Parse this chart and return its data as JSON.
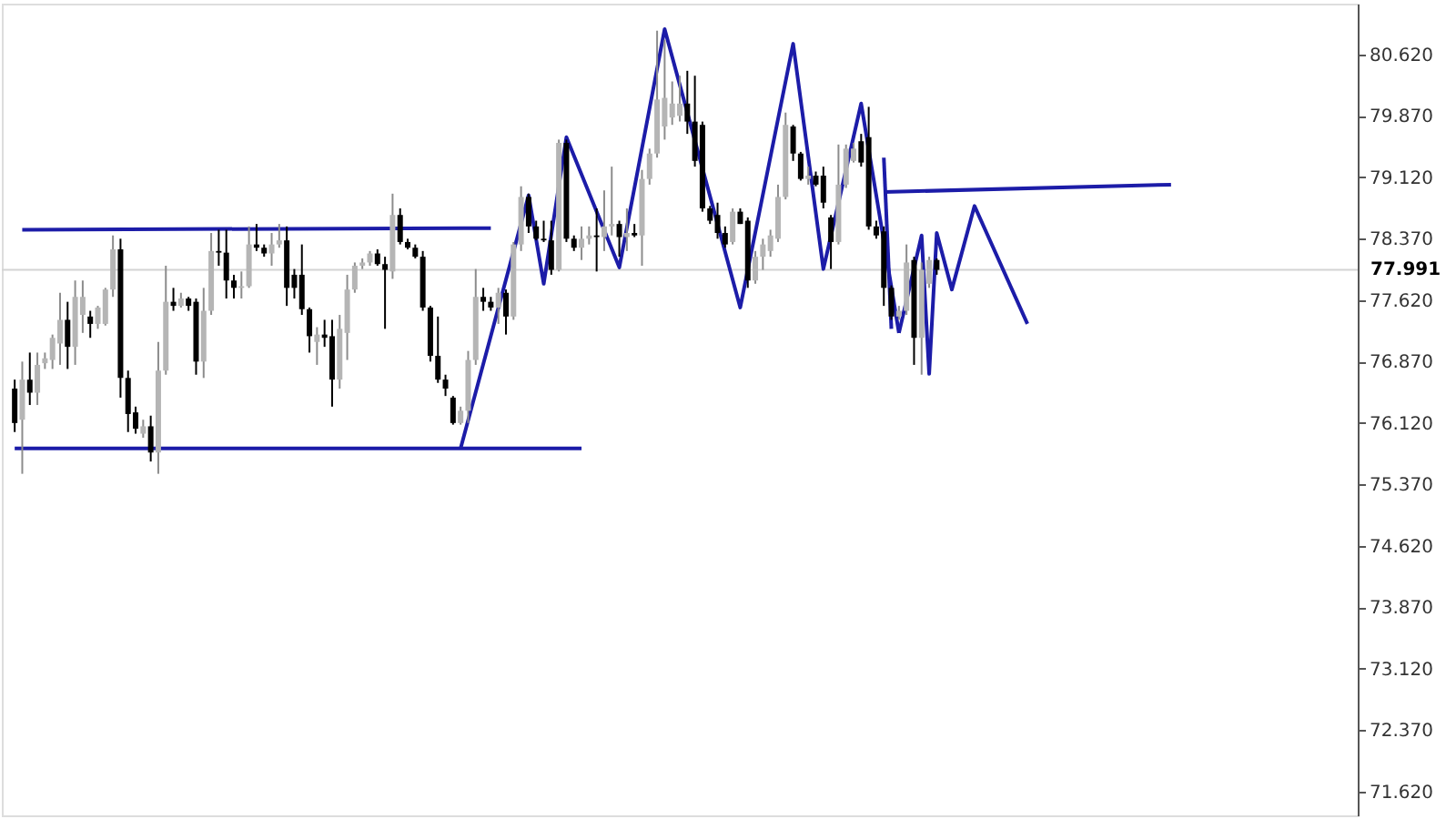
{
  "chart_data": {
    "type": "candlestick",
    "categories": [
      null,
      null,
      null,
      null,
      null,
      null,
      null,
      null,
      null,
      null,
      null,
      null,
      null,
      null,
      null,
      null,
      null,
      null,
      null,
      null,
      null,
      null,
      null,
      null,
      null,
      null,
      null,
      null,
      null,
      null,
      null,
      null,
      null,
      null,
      null,
      null,
      null,
      null,
      null,
      null,
      null,
      null,
      null,
      null,
      null,
      null,
      null,
      null,
      null,
      null,
      null,
      null,
      null,
      null,
      null,
      null,
      null,
      null,
      null,
      null,
      null,
      null,
      null,
      null,
      null,
      null,
      null,
      null,
      null,
      null,
      null,
      null,
      null,
      null,
      null,
      null,
      null,
      null,
      null,
      null,
      null,
      null,
      null,
      null,
      null,
      null,
      null,
      null,
      null,
      null,
      null,
      null,
      null,
      null,
      null,
      null,
      null,
      null,
      null,
      null,
      null,
      null,
      null,
      null,
      null,
      null,
      null,
      null,
      null,
      null,
      null,
      null,
      null,
      null,
      null,
      null,
      null,
      null,
      null,
      null,
      null,
      null,
      null,
      null,
      null,
      null,
      null,
      null,
      null,
      null,
      null,
      null,
      null,
      null,
      null,
      null,
      null,
      null,
      null,
      null,
      null,
      null,
      null,
      null,
      null,
      null,
      null,
      null,
      null,
      null,
      null,
      null,
      null,
      null,
      null,
      null,
      null,
      null,
      null,
      null,
      null,
      null,
      null,
      null,
      null,
      null,
      null,
      null,
      null,
      null,
      null,
      null,
      null,
      null,
      null,
      null,
      null
    ],
    "ohlc": [
      [
        76.54,
        76.65,
        76.01,
        76.12
      ],
      [
        76.16,
        76.87,
        75.5,
        76.65
      ],
      [
        76.65,
        76.98,
        76.34,
        76.49
      ],
      [
        76.49,
        76.98,
        76.34,
        76.83
      ],
      [
        76.85,
        76.98,
        76.78,
        76.91
      ],
      [
        76.89,
        77.2,
        76.78,
        77.16
      ],
      [
        77.09,
        77.71,
        76.83,
        77.38
      ],
      [
        77.38,
        77.6,
        76.78,
        77.05
      ],
      [
        77.05,
        77.86,
        76.83,
        77.66
      ],
      [
        77.44,
        77.86,
        77.22,
        77.66
      ],
      [
        77.42,
        77.49,
        77.16,
        77.33
      ],
      [
        77.33,
        77.55,
        77.27,
        77.53
      ],
      [
        77.33,
        77.77,
        77.31,
        77.75
      ],
      [
        77.75,
        78.41,
        77.66,
        78.24
      ],
      [
        78.24,
        78.37,
        76.43,
        76.67
      ],
      [
        76.67,
        76.76,
        76.01,
        76.23
      ],
      [
        76.25,
        76.32,
        75.99,
        76.05
      ],
      [
        75.99,
        76.16,
        75.94,
        76.08
      ],
      [
        76.08,
        76.21,
        75.65,
        75.76
      ],
      [
        75.76,
        77.11,
        75.5,
        76.76
      ],
      [
        76.76,
        78.04,
        76.71,
        77.6
      ],
      [
        77.6,
        77.77,
        77.49,
        77.55
      ],
      [
        77.55,
        77.71,
        77.53,
        77.64
      ],
      [
        77.64,
        77.66,
        77.49,
        77.55
      ],
      [
        77.6,
        77.64,
        76.71,
        76.87
      ],
      [
        76.87,
        77.77,
        76.67,
        77.49
      ],
      [
        77.49,
        78.44,
        77.44,
        78.22
      ],
      [
        78.22,
        78.48,
        78.04,
        78.2
      ],
      [
        78.2,
        78.48,
        77.64,
        77.86
      ],
      [
        77.86,
        77.93,
        77.64,
        77.77
      ],
      [
        77.77,
        77.97,
        77.64,
        77.79
      ],
      [
        77.79,
        78.52,
        77.77,
        78.3
      ],
      [
        78.3,
        78.55,
        78.22,
        78.26
      ],
      [
        78.26,
        78.3,
        78.15,
        78.19
      ],
      [
        78.19,
        78.44,
        78.04,
        78.3
      ],
      [
        78.3,
        78.55,
        78.26,
        78.35
      ],
      [
        78.35,
        78.52,
        77.55,
        77.77
      ],
      [
        77.93,
        78.0,
        77.64,
        77.77
      ],
      [
        77.93,
        78.3,
        77.44,
        77.51
      ],
      [
        77.51,
        77.53,
        76.98,
        77.18
      ],
      [
        77.11,
        77.29,
        76.83,
        77.2
      ],
      [
        77.2,
        77.38,
        77.05,
        77.16
      ],
      [
        77.18,
        77.38,
        76.32,
        76.65
      ],
      [
        76.65,
        77.44,
        76.54,
        77.27
      ],
      [
        77.22,
        77.93,
        76.89,
        77.75
      ],
      [
        77.75,
        78.08,
        77.71,
        78.04
      ],
      [
        78.04,
        78.13,
        78.0,
        78.08
      ],
      [
        78.08,
        78.22,
        78.04,
        78.19
      ],
      [
        78.19,
        78.24,
        78.04,
        78.06
      ],
      [
        78.06,
        78.15,
        77.27,
        77.99
      ],
      [
        77.97,
        78.92,
        77.88,
        78.66
      ],
      [
        78.66,
        78.74,
        78.3,
        78.33
      ],
      [
        78.33,
        78.37,
        78.24,
        78.26
      ],
      [
        78.26,
        78.3,
        78.13,
        78.15
      ],
      [
        78.15,
        78.22,
        77.49,
        77.53
      ],
      [
        77.53,
        77.55,
        76.87,
        76.94
      ],
      [
        76.94,
        77.42,
        76.61,
        76.65
      ],
      [
        76.65,
        76.71,
        76.45,
        76.54
      ],
      [
        76.43,
        76.45,
        76.1,
        76.12
      ],
      [
        76.12,
        76.32,
        76.1,
        76.27
      ],
      [
        76.27,
        77.0,
        76.12,
        76.89
      ],
      [
        76.89,
        78.0,
        76.83,
        77.66
      ],
      [
        77.66,
        77.77,
        77.49,
        77.6
      ],
      [
        77.6,
        77.66,
        77.49,
        77.53
      ],
      [
        77.53,
        77.77,
        77.33,
        77.71
      ],
      [
        77.71,
        77.75,
        77.2,
        77.42
      ],
      [
        77.42,
        78.33,
        77.38,
        78.3
      ],
      [
        78.3,
        79.01,
        78.22,
        78.88
      ],
      [
        78.88,
        78.92,
        78.44,
        78.52
      ],
      [
        78.52,
        78.59,
        78.35,
        78.37
      ],
      [
        78.37,
        78.59,
        78.33,
        78.35
      ],
      [
        78.35,
        78.59,
        77.93,
        77.99
      ],
      [
        77.99,
        79.58,
        77.97,
        79.54
      ],
      [
        79.54,
        79.58,
        78.33,
        78.37
      ],
      [
        78.37,
        78.41,
        78.22,
        78.26
      ],
      [
        78.26,
        78.52,
        78.11,
        78.37
      ],
      [
        78.37,
        78.52,
        78.3,
        78.41
      ],
      [
        78.41,
        78.74,
        77.97,
        78.39
      ],
      [
        78.39,
        78.96,
        78.22,
        78.52
      ],
      [
        78.52,
        79.25,
        78.41,
        78.55
      ],
      [
        78.55,
        78.59,
        78.15,
        78.39
      ],
      [
        78.39,
        78.74,
        78.22,
        78.44
      ],
      [
        78.44,
        78.55,
        78.39,
        78.41
      ],
      [
        78.41,
        79.21,
        78.04,
        79.1
      ],
      [
        79.1,
        79.47,
        79.03,
        79.41
      ],
      [
        79.41,
        80.91,
        79.36,
        80.07
      ],
      [
        79.74,
        80.8,
        79.58,
        80.09
      ],
      [
        79.85,
        80.29,
        79.76,
        80.02
      ],
      [
        79.87,
        80.36,
        79.8,
        80.02
      ],
      [
        80.02,
        80.42,
        79.65,
        79.8
      ],
      [
        79.8,
        80.36,
        79.25,
        79.32
      ],
      [
        79.76,
        79.8,
        78.7,
        78.74
      ],
      [
        78.74,
        78.77,
        78.55,
        78.59
      ],
      [
        78.66,
        78.81,
        78.37,
        78.44
      ],
      [
        78.44,
        78.52,
        78.26,
        78.3
      ],
      [
        78.33,
        78.74,
        78.3,
        78.7
      ],
      [
        78.7,
        78.74,
        78.55,
        78.55
      ],
      [
        78.59,
        78.63,
        77.77,
        77.86
      ],
      [
        77.86,
        78.22,
        77.82,
        78.15
      ],
      [
        78.15,
        78.37,
        77.99,
        78.3
      ],
      [
        78.22,
        78.48,
        78.15,
        78.41
      ],
      [
        78.37,
        79.03,
        78.33,
        78.88
      ],
      [
        78.88,
        79.91,
        78.85,
        79.76
      ],
      [
        79.74,
        79.76,
        79.32,
        79.41
      ],
      [
        79.41,
        79.43,
        79.08,
        79.1
      ],
      [
        79.1,
        79.25,
        79.03,
        79.14
      ],
      [
        79.14,
        79.19,
        79.01,
        79.03
      ],
      [
        79.14,
        79.25,
        78.74,
        78.81
      ],
      [
        78.63,
        78.66,
        78.0,
        78.33
      ],
      [
        78.33,
        79.52,
        78.3,
        79.03
      ],
      [
        79.03,
        79.52,
        78.99,
        79.47
      ],
      [
        79.32,
        79.54,
        79.3,
        79.47
      ],
      [
        79.56,
        79.65,
        79.25,
        79.3
      ],
      [
        79.61,
        79.98,
        78.48,
        78.52
      ],
      [
        78.52,
        78.59,
        78.37,
        78.41
      ],
      [
        78.46,
        78.52,
        77.55,
        77.77
      ],
      [
        77.77,
        77.8,
        77.38,
        77.42
      ],
      [
        77.42,
        77.55,
        77.38,
        77.49
      ],
      [
        77.49,
        78.3,
        77.44,
        78.08
      ],
      [
        78.11,
        78.15,
        76.83,
        77.16
      ],
      [
        77.16,
        78.08,
        76.71,
        77.99
      ],
      [
        77.82,
        78.15,
        77.77,
        78.11
      ],
      [
        78.11,
        78.13,
        77.93,
        77.99
      ],
      null,
      null,
      null,
      null,
      null,
      null,
      null,
      null,
      null,
      null,
      null,
      null,
      null,
      null,
      null,
      null,
      null,
      null,
      null,
      null,
      null,
      null,
      null,
      null,
      null,
      null,
      null,
      null,
      null,
      null,
      null,
      null,
      null,
      null,
      null,
      null,
      null,
      null,
      null,
      null,
      null,
      null,
      null,
      null,
      null,
      null,
      null,
      null,
      null,
      null,
      null,
      null,
      null,
      null
    ],
    "series": [
      {
        "type": "line",
        "color": "#1c1ca8",
        "values": [
          null,
          78.48,
          null,
          null,
          null,
          null,
          null,
          null,
          null,
          null,
          null,
          null,
          null,
          null,
          null,
          null,
          null,
          null,
          null,
          null,
          null,
          null,
          null,
          null,
          null,
          null,
          null,
          null,
          null,
          null,
          null,
          null,
          null,
          null,
          null,
          null,
          null,
          null,
          null,
          null,
          null,
          null,
          null,
          null,
          null,
          null,
          null,
          null,
          null,
          null,
          null,
          null,
          null,
          null,
          null,
          null,
          null,
          null,
          null,
          null,
          null,
          null,
          null,
          78.5,
          null,
          null,
          null,
          null,
          null,
          null,
          null,
          null,
          null,
          null,
          null,
          null,
          null,
          null,
          null,
          null,
          null,
          null,
          null,
          null,
          null,
          null,
          null,
          null,
          null,
          null,
          null,
          null,
          null,
          null,
          null,
          null,
          null,
          null,
          null,
          null,
          null,
          null,
          null,
          null,
          null,
          null,
          null,
          null,
          null,
          null,
          null,
          null,
          null,
          null,
          null,
          null,
          null,
          null,
          null,
          null,
          null,
          null,
          null,
          null,
          null,
          null,
          null,
          null,
          null,
          null,
          null,
          null,
          null,
          null,
          null,
          null,
          null,
          null,
          null,
          null,
          null,
          null,
          null,
          null,
          null,
          null,
          null,
          null,
          null,
          null,
          null,
          null,
          null,
          null,
          null,
          null,
          null,
          null,
          null,
          null,
          null,
          null,
          null,
          null,
          null,
          null,
          null,
          null,
          null,
          null,
          null,
          null,
          null,
          null,
          null,
          null,
          null
        ]
      },
      {
        "type": "line",
        "color": "#1c1ca8",
        "values": [
          75.81,
          null,
          null,
          null,
          null,
          null,
          null,
          null,
          null,
          null,
          null,
          null,
          null,
          null,
          null,
          null,
          null,
          null,
          null,
          null,
          null,
          null,
          null,
          null,
          null,
          null,
          null,
          null,
          null,
          null,
          null,
          null,
          null,
          null,
          null,
          null,
          null,
          null,
          null,
          null,
          null,
          null,
          null,
          null,
          null,
          null,
          null,
          null,
          null,
          null,
          null,
          null,
          null,
          null,
          null,
          null,
          null,
          null,
          null,
          null,
          null,
          null,
          null,
          null,
          null,
          null,
          null,
          null,
          null,
          null,
          null,
          null,
          null,
          null,
          null,
          75.81,
          null,
          null,
          null,
          null,
          null,
          null,
          null,
          null,
          null,
          null,
          null,
          null,
          null,
          null,
          null,
          null,
          null,
          null,
          null,
          null,
          null,
          null,
          null,
          null,
          null,
          null,
          null,
          null,
          null,
          null,
          null,
          null,
          null,
          null,
          null,
          null,
          null,
          null,
          null,
          null,
          null,
          null,
          null,
          null,
          null,
          null,
          null,
          null,
          null,
          null,
          null,
          null,
          null,
          null,
          null,
          null,
          null,
          null,
          null,
          null,
          null,
          null,
          null,
          null,
          null,
          null,
          null,
          null,
          null,
          null,
          null,
          null,
          null,
          null,
          null,
          null,
          null,
          null,
          null,
          null,
          null,
          null,
          null,
          null,
          null,
          null,
          null,
          null,
          null,
          null,
          null,
          null,
          null,
          null,
          null,
          null,
          null,
          null,
          null,
          null,
          null
        ]
      },
      {
        "type": "line",
        "color": "#1c1ca8",
        "values": [
          null,
          null,
          null,
          null,
          null,
          null,
          null,
          null,
          null,
          null,
          null,
          null,
          null,
          null,
          null,
          null,
          null,
          null,
          null,
          null,
          null,
          null,
          null,
          null,
          null,
          null,
          null,
          null,
          null,
          null,
          null,
          null,
          null,
          null,
          null,
          null,
          null,
          null,
          null,
          null,
          null,
          null,
          null,
          null,
          null,
          null,
          null,
          null,
          null,
          null,
          null,
          null,
          null,
          null,
          null,
          null,
          null,
          null,
          null,
          75.81,
          null,
          null,
          null,
          null,
          null,
          null,
          null,
          null,
          78.9,
          null,
          77.82,
          null,
          null,
          79.61,
          null,
          null,
          null,
          null,
          null,
          null,
          78.02,
          null,
          null,
          null,
          null,
          null,
          80.93,
          null,
          null,
          null,
          null,
          null,
          null,
          null,
          null,
          null,
          77.53,
          null,
          null,
          null,
          null,
          null,
          null,
          80.75,
          null,
          null,
          null,
          78.0,
          null,
          null,
          null,
          null,
          80.02,
          null,
          null,
          null,
          null,
          77.22,
          null,
          null,
          null,
          null,
          null,
          null,
          null,
          null,
          null,
          null,
          null,
          null,
          null,
          null,
          null,
          null,
          null,
          null,
          null,
          null,
          null,
          null,
          null,
          null,
          null,
          null,
          null,
          null,
          null,
          null,
          null,
          null,
          null,
          null,
          null,
          null,
          null,
          null,
          null,
          null,
          null,
          null,
          null,
          null,
          null,
          null,
          null,
          null,
          null,
          null,
          null,
          null,
          null,
          null,
          null,
          null,
          null,
          null,
          null
        ]
      },
      {
        "type": "line",
        "color": "#1c1ca8",
        "values": [
          null,
          null,
          null,
          null,
          null,
          null,
          null,
          null,
          null,
          null,
          null,
          null,
          null,
          null,
          null,
          null,
          null,
          null,
          null,
          null,
          null,
          null,
          null,
          null,
          null,
          null,
          null,
          null,
          null,
          null,
          null,
          null,
          null,
          null,
          null,
          null,
          null,
          null,
          null,
          null,
          null,
          null,
          null,
          null,
          null,
          null,
          null,
          null,
          null,
          null,
          null,
          null,
          null,
          null,
          null,
          null,
          null,
          null,
          null,
          null,
          null,
          null,
          null,
          null,
          null,
          null,
          null,
          null,
          null,
          null,
          null,
          null,
          null,
          null,
          null,
          null,
          null,
          null,
          null,
          null,
          null,
          null,
          null,
          null,
          null,
          null,
          null,
          null,
          null,
          null,
          null,
          null,
          null,
          null,
          null,
          null,
          null,
          null,
          null,
          null,
          null,
          null,
          null,
          null,
          null,
          null,
          null,
          null,
          null,
          null,
          null,
          null,
          null,
          null,
          null,
          79.36,
          77.27,
          null,
          null,
          null,
          null,
          null,
          null,
          null,
          null,
          null,
          null,
          null,
          null,
          null,
          null,
          null,
          null,
          null,
          null,
          null,
          null,
          null,
          null,
          null,
          null,
          null,
          null,
          null,
          null,
          null,
          null,
          null,
          null,
          null,
          null,
          null,
          null,
          null,
          null,
          null,
          null,
          null,
          null,
          null,
          null,
          null,
          null,
          null,
          null,
          null,
          null,
          null,
          null,
          null,
          null,
          null,
          null,
          null,
          null,
          null,
          null
        ]
      },
      {
        "type": "line",
        "color": "#1c1ca8",
        "values": [
          null,
          null,
          null,
          null,
          null,
          null,
          null,
          null,
          null,
          null,
          null,
          null,
          null,
          null,
          null,
          null,
          null,
          null,
          null,
          null,
          null,
          null,
          null,
          null,
          null,
          null,
          null,
          null,
          null,
          null,
          null,
          null,
          null,
          null,
          null,
          null,
          null,
          null,
          null,
          null,
          null,
          null,
          null,
          null,
          null,
          null,
          null,
          null,
          null,
          null,
          null,
          null,
          null,
          null,
          null,
          null,
          null,
          null,
          null,
          null,
          null,
          null,
          null,
          null,
          null,
          null,
          null,
          null,
          null,
          null,
          null,
          null,
          null,
          null,
          null,
          null,
          null,
          null,
          null,
          null,
          null,
          null,
          null,
          null,
          null,
          null,
          null,
          null,
          null,
          null,
          null,
          null,
          null,
          null,
          null,
          null,
          null,
          null,
          null,
          null,
          null,
          null,
          null,
          null,
          null,
          null,
          null,
          null,
          null,
          null,
          null,
          null,
          null,
          null,
          null,
          78.94,
          null,
          null,
          null,
          null,
          null,
          null,
          null,
          null,
          null,
          null,
          null,
          null,
          null,
          null,
          null,
          null,
          null,
          null,
          null,
          null,
          null,
          null,
          null,
          null,
          null,
          null,
          null,
          null,
          null,
          null,
          null,
          null,
          null,
          null,
          null,
          null,
          null,
          79.03,
          null,
          null,
          null,
          null,
          null,
          null,
          null,
          null,
          null,
          null,
          null,
          null,
          null,
          null,
          null,
          null,
          null,
          null,
          null,
          null,
          null,
          null,
          null
        ]
      },
      {
        "type": "line",
        "color": "#1c1ca8",
        "values": [
          null,
          null,
          null,
          null,
          null,
          null,
          null,
          null,
          null,
          null,
          null,
          null,
          null,
          null,
          null,
          null,
          null,
          null,
          null,
          null,
          null,
          null,
          null,
          null,
          null,
          null,
          null,
          null,
          null,
          null,
          null,
          null,
          null,
          null,
          null,
          null,
          null,
          null,
          null,
          null,
          null,
          null,
          null,
          null,
          null,
          null,
          null,
          null,
          null,
          null,
          null,
          null,
          null,
          null,
          null,
          null,
          null,
          null,
          null,
          null,
          null,
          null,
          null,
          null,
          null,
          null,
          null,
          null,
          null,
          null,
          null,
          null,
          null,
          null,
          null,
          null,
          null,
          null,
          null,
          null,
          null,
          null,
          null,
          null,
          null,
          null,
          null,
          null,
          null,
          null,
          null,
          null,
          null,
          null,
          null,
          null,
          null,
          null,
          null,
          null,
          null,
          null,
          null,
          null,
          null,
          null,
          null,
          null,
          null,
          null,
          null,
          null,
          null,
          null,
          null,
          null,
          null,
          77.22,
          null,
          null,
          78.41,
          76.72,
          78.44,
          null,
          77.75,
          null,
          null,
          78.77,
          null,
          null,
          null,
          null,
          null,
          null,
          77.33,
          null,
          null,
          null,
          null,
          null,
          null,
          null,
          null,
          null,
          null,
          null,
          null,
          null,
          null,
          null,
          null,
          null,
          null,
          null,
          null,
          null,
          null,
          null,
          null,
          null,
          null,
          null,
          null,
          null,
          null,
          null,
          null,
          null,
          null,
          null,
          null,
          null,
          null,
          null,
          null,
          null,
          null
        ]
      }
    ],
    "ylim": [
      71.33,
      81.24
    ],
    "yticks": [
      {
        "value": 80.62,
        "label": "80.620"
      },
      {
        "value": 79.87,
        "label": "79.870"
      },
      {
        "value": 79.12,
        "label": "79.120"
      },
      {
        "value": 78.37,
        "label": "78.370"
      },
      {
        "value": 77.62,
        "label": "77.620"
      },
      {
        "value": 76.87,
        "label": "76.870"
      },
      {
        "value": 76.12,
        "label": "76.120"
      },
      {
        "value": 75.37,
        "label": "75.370"
      },
      {
        "value": 74.62,
        "label": "74.620"
      },
      {
        "value": 73.87,
        "label": "73.870"
      },
      {
        "value": 73.12,
        "label": "73.120"
      },
      {
        "value": 72.37,
        "label": "72.370"
      },
      {
        "value": 71.62,
        "label": "71.620"
      }
    ],
    "ref_lines": [
      {
        "axis": "y",
        "value": 77.991,
        "label": "77.991",
        "color": "#d3d3d3"
      }
    ],
    "tick_labels": "y"
  }
}
